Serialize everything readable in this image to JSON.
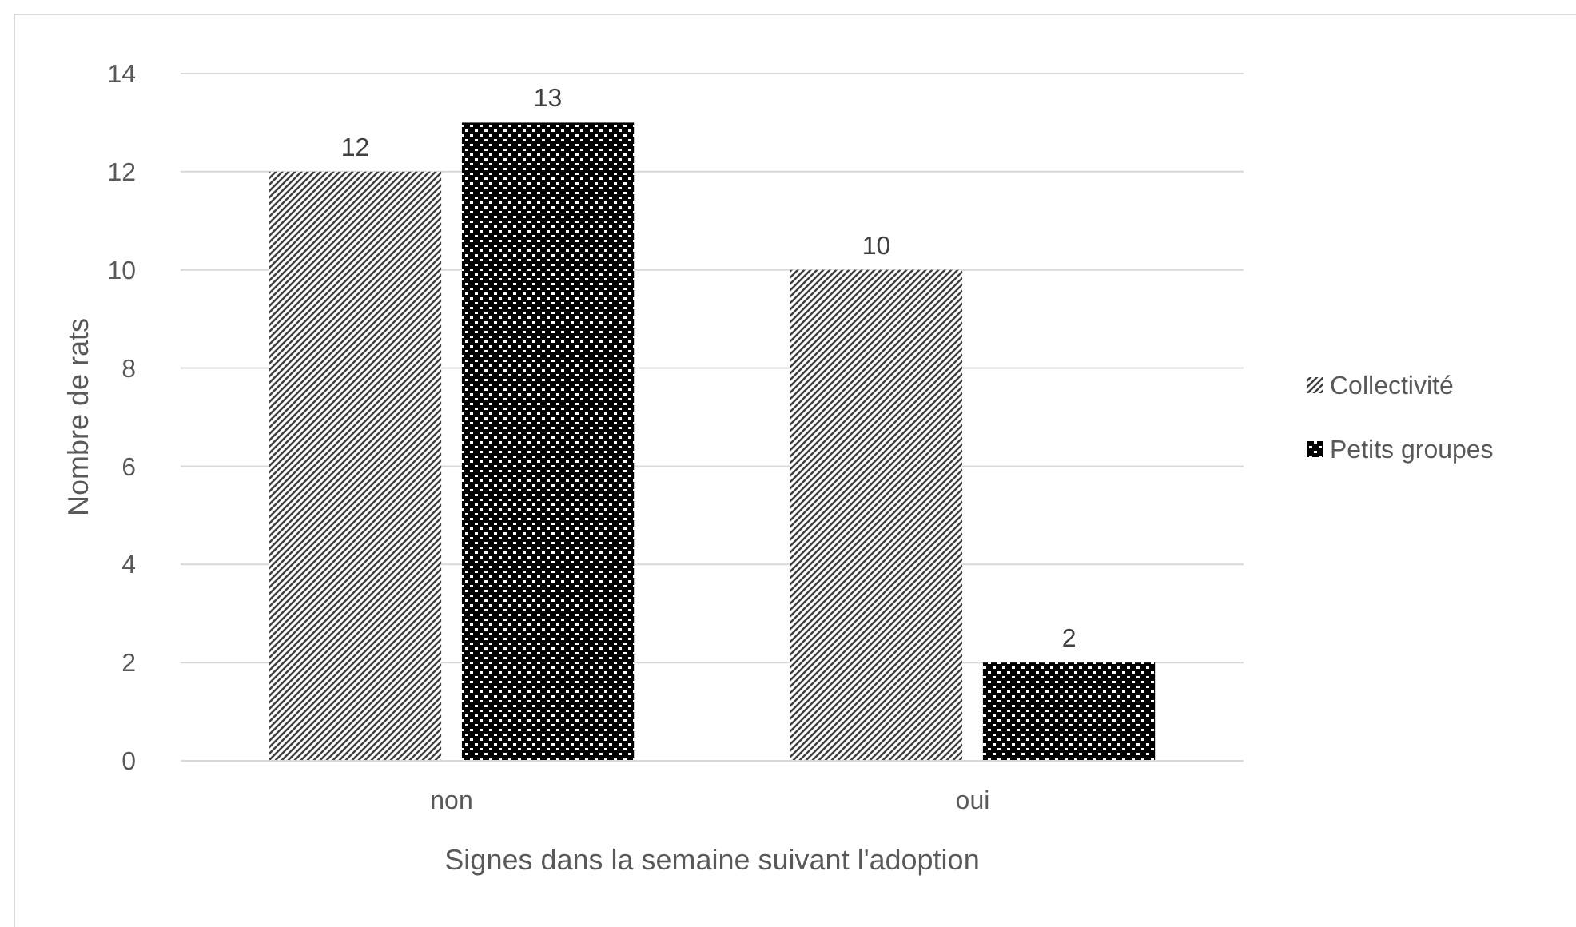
{
  "chart_data": {
    "type": "bar",
    "xlabel": "Signes dans la semaine suivant l'adoption",
    "ylabel": "Nombre de rats",
    "categories": [
      "non",
      "oui"
    ],
    "series": [
      {
        "name": "Collectivité",
        "color": "#404040",
        "values": [
          12,
          10
        ]
      },
      {
        "name": "Petits groupes",
        "color": "#000000",
        "values": [
          13,
          2
        ]
      }
    ],
    "ylim": [
      0,
      14
    ],
    "yticks": [
      0,
      2,
      4,
      6,
      8,
      10,
      12,
      14
    ],
    "grid": "y",
    "legend": "right",
    "data_labels": true
  }
}
